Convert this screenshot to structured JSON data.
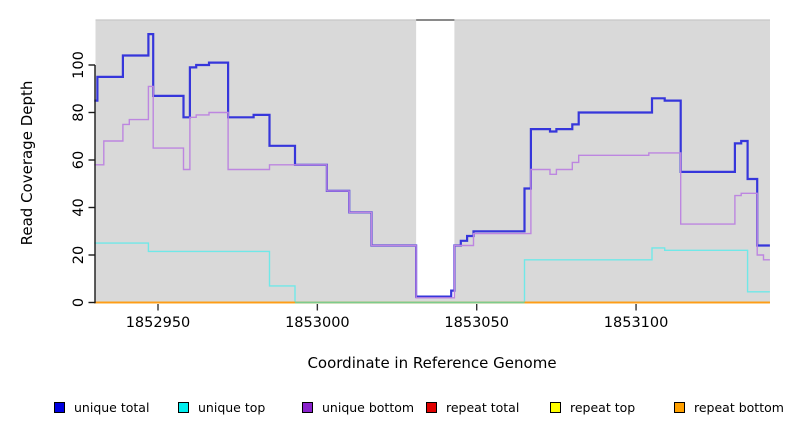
{
  "chart_data": {
    "type": "line",
    "step": true,
    "title": "",
    "xlabel": "Coordinate in Reference Genome",
    "ylabel": "Read Coverage Depth",
    "xlim": [
      1852930,
      1853142
    ],
    "ylim": [
      0,
      118
    ],
    "x_ticks": [
      1852950,
      1853000,
      1853050,
      1853100
    ],
    "y_ticks": [
      0,
      20,
      40,
      60,
      80,
      100
    ],
    "grid": false,
    "plot_bg_color": "#d9d9d9",
    "gap_region": {
      "from": 1853031,
      "to": 1853043,
      "fill": "#ffffff",
      "top_edge_color": "#8a8a8a"
    },
    "overlap_segment": {
      "from": 1852993,
      "to": 1853065,
      "value": 0,
      "color": "#7ccb8e",
      "note": "unique top at 0 overlapping repeat bottom"
    },
    "series": [
      {
        "name": "unique total",
        "color": "#3636db",
        "width": 2.2,
        "points": [
          [
            1852930,
            85
          ],
          [
            1852931,
            95
          ],
          [
            1852939,
            104
          ],
          [
            1852947,
            113
          ],
          [
            1852948.5,
            87
          ],
          [
            1852958,
            78
          ],
          [
            1852960,
            99
          ],
          [
            1852962,
            100
          ],
          [
            1852966,
            101
          ],
          [
            1852972,
            78
          ],
          [
            1852980,
            79
          ],
          [
            1852985,
            66
          ],
          [
            1852993,
            58
          ],
          [
            1853003,
            47
          ],
          [
            1853010,
            38
          ],
          [
            1853017,
            24
          ],
          [
            1853031,
            2.5
          ],
          [
            1853042,
            5
          ],
          [
            1853043,
            24
          ],
          [
            1853045,
            26
          ],
          [
            1853047,
            28
          ],
          [
            1853049,
            30
          ],
          [
            1853065,
            48
          ],
          [
            1853067,
            73
          ],
          [
            1853073,
            72
          ],
          [
            1853075,
            73
          ],
          [
            1853080,
            75
          ],
          [
            1853082,
            80
          ],
          [
            1853105,
            86
          ],
          [
            1853109,
            85
          ],
          [
            1853114,
            55
          ],
          [
            1853131,
            67
          ],
          [
            1853133,
            68
          ],
          [
            1853135,
            52
          ],
          [
            1853138,
            24
          ],
          [
            1853142,
            24
          ]
        ]
      },
      {
        "name": "unique top",
        "color": "#70e8e8",
        "width": 1.4,
        "points": [
          [
            1852930,
            25
          ],
          [
            1852947,
            21.5
          ],
          [
            1852985,
            7
          ],
          [
            1852993,
            0
          ],
          [
            1853065,
            18
          ],
          [
            1853105,
            23
          ],
          [
            1853109,
            22
          ],
          [
            1853135,
            4.5
          ],
          [
            1853142,
            4.5
          ]
        ]
      },
      {
        "name": "unique bottom",
        "color": "#bd86e0",
        "width": 1.4,
        "points": [
          [
            1852930,
            58
          ],
          [
            1852933,
            68
          ],
          [
            1852939,
            75
          ],
          [
            1852941,
            77
          ],
          [
            1852947,
            91
          ],
          [
            1852948.5,
            65
          ],
          [
            1852958,
            56
          ],
          [
            1852960,
            78
          ],
          [
            1852962,
            79
          ],
          [
            1852966,
            80
          ],
          [
            1852972,
            56
          ],
          [
            1852985,
            58
          ],
          [
            1853003,
            47
          ],
          [
            1853010,
            38
          ],
          [
            1853017,
            24
          ],
          [
            1853031,
            2
          ],
          [
            1853043,
            24
          ],
          [
            1853049,
            29
          ],
          [
            1853067,
            56
          ],
          [
            1853073,
            54
          ],
          [
            1853075,
            56
          ],
          [
            1853080,
            59
          ],
          [
            1853082,
            62
          ],
          [
            1853104,
            63
          ],
          [
            1853114,
            33
          ],
          [
            1853131,
            45
          ],
          [
            1853133,
            46
          ],
          [
            1853138,
            20
          ],
          [
            1853140,
            18
          ],
          [
            1853142,
            18
          ]
        ]
      },
      {
        "name": "repeat total",
        "color": "#cc2222",
        "width": 1.4,
        "points": [
          [
            1852930,
            0
          ],
          [
            1853142,
            0
          ]
        ]
      },
      {
        "name": "repeat top",
        "color": "#e8e800",
        "width": 1.4,
        "points": [
          [
            1852930,
            0
          ],
          [
            1853142,
            0
          ]
        ]
      },
      {
        "name": "repeat bottom",
        "color": "#ff9c17",
        "width": 1.8,
        "points": [
          [
            1852930,
            0
          ],
          [
            1853142,
            0
          ]
        ]
      }
    ]
  },
  "legend": {
    "items": [
      {
        "label": "unique total",
        "color": "#0000e0"
      },
      {
        "label": "unique top",
        "color": "#00eded"
      },
      {
        "label": "unique bottom",
        "color": "#8a22cc"
      },
      {
        "label": "repeat total",
        "color": "#e00000"
      },
      {
        "label": "repeat top",
        "color": "#ffff00"
      },
      {
        "label": "repeat bottom",
        "color": "#ffa000"
      }
    ]
  }
}
